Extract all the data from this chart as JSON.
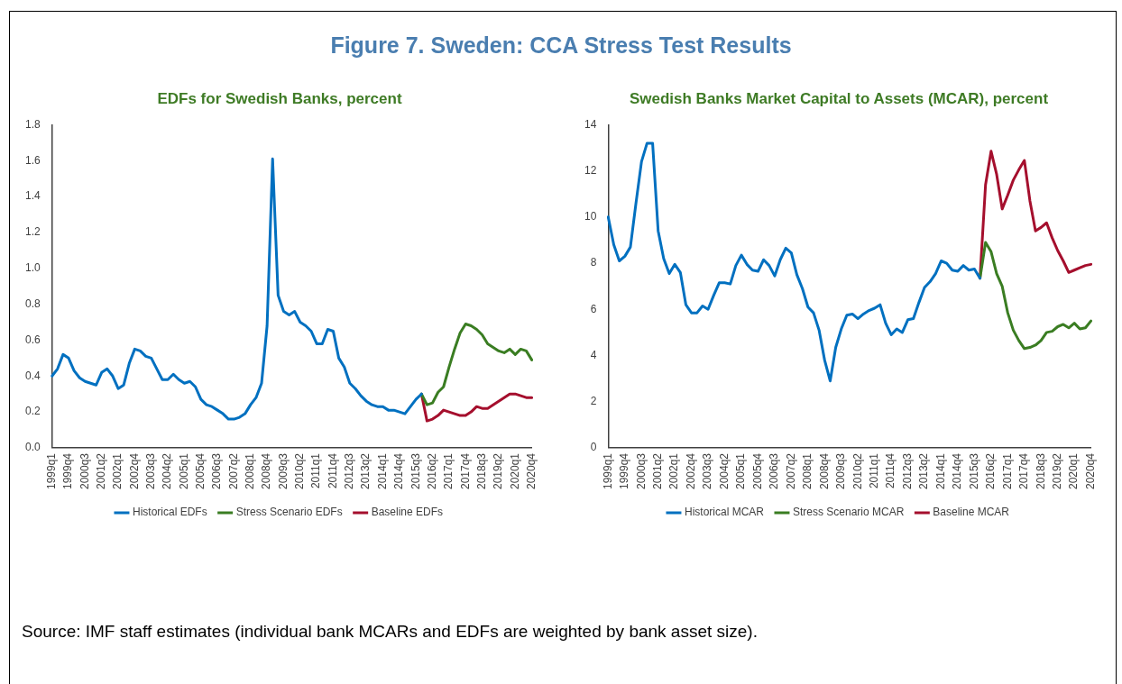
{
  "chart_data": [
    {
      "type": "other",
      "title": "Figure 7. Sweden: CCA Stress Test Results",
      "annotations": [
        "Source: IMF staff estimates (individual bank MCARs and EDFs are weighted by bank asset size)."
      ]
    },
    {
      "type": "line",
      "title": "EDFs for Swedish Banks, percent",
      "legend": "bottom",
      "grid": false,
      "marker": "none",
      "line_style": "solid",
      "categories": [
        "1999q1",
        null,
        null,
        "1999q4",
        null,
        null,
        "2000q3",
        null,
        null,
        "2001q2",
        null,
        null,
        "2002q1",
        null,
        null,
        "2002q4",
        null,
        null,
        "2003q3",
        null,
        null,
        "2004q2",
        null,
        null,
        "2005q1",
        null,
        null,
        "2005q4",
        null,
        null,
        "2006q3",
        null,
        null,
        "2007q2",
        null,
        null,
        "2008q1",
        null,
        null,
        "2008q4",
        null,
        null,
        "2009q3",
        null,
        null,
        "2010q2",
        null,
        null,
        "2011q1",
        null,
        null,
        "2011q4",
        null,
        null,
        "2012q3",
        null,
        null,
        "2013q2",
        null,
        null,
        "2014q1",
        null,
        null,
        "2014q4",
        null,
        null,
        "2015q3",
        null,
        null,
        "2016q2",
        null,
        null,
        "2017q1",
        null,
        null,
        "2017q4",
        null,
        null,
        "2018q3",
        null,
        null,
        "2019q2",
        null,
        null,
        "2020q1",
        null,
        null,
        "2020q4"
      ],
      "ylim": [
        0,
        1.8
      ],
      "yticks": [
        {
          "value": 0,
          "label": "0.0"
        },
        0.2,
        0.4,
        0.6,
        0.8,
        {
          "value": 1,
          "label": "1.0"
        },
        1.2,
        1.4,
        1.6,
        1.8
      ],
      "series": [
        {
          "name": "Historical EDFs",
          "color": "#0070c0",
          "values": [
            0.4,
            0.44,
            0.52,
            0.5,
            0.43,
            0.39,
            0.37,
            0.36,
            0.35,
            0.42,
            0.44,
            0.4,
            0.33,
            0.35,
            0.47,
            0.55,
            0.54,
            0.51,
            0.5,
            0.44,
            0.38,
            0.38,
            0.41,
            0.38,
            0.36,
            0.37,
            0.34,
            0.27,
            0.24,
            0.23,
            0.21,
            0.19,
            0.16,
            0.16,
            0.17,
            0.19,
            0.24,
            0.28,
            0.36,
            0.68,
            1.61,
            0.85,
            0.76,
            0.74,
            0.76,
            0.7,
            0.68,
            0.65,
            0.58,
            0.58,
            0.66,
            0.65,
            0.5,
            0.45,
            0.36,
            0.33,
            0.29,
            0.26,
            0.24,
            0.23,
            0.23,
            0.21,
            0.21,
            0.2,
            0.19,
            0.23,
            0.27,
            0.3,
            null,
            null,
            null,
            null,
            null,
            null,
            null,
            null,
            null,
            null,
            null,
            null,
            null,
            null,
            null,
            null,
            null,
            null,
            null,
            null
          ]
        },
        {
          "name": "Stress Scenario EDFs",
          "color": "#3a7d22",
          "values": [
            null,
            null,
            null,
            null,
            null,
            null,
            null,
            null,
            null,
            null,
            null,
            null,
            null,
            null,
            null,
            null,
            null,
            null,
            null,
            null,
            null,
            null,
            null,
            null,
            null,
            null,
            null,
            null,
            null,
            null,
            null,
            null,
            null,
            null,
            null,
            null,
            null,
            null,
            null,
            null,
            null,
            null,
            null,
            null,
            null,
            null,
            null,
            null,
            null,
            null,
            null,
            null,
            null,
            null,
            null,
            null,
            null,
            null,
            null,
            null,
            null,
            null,
            null,
            null,
            null,
            null,
            null,
            0.3,
            0.24,
            0.25,
            0.31,
            0.34,
            0.45,
            0.55,
            0.64,
            0.69,
            0.68,
            0.66,
            0.63,
            0.58,
            0.56,
            0.54,
            0.53,
            0.55,
            0.52,
            0.55,
            0.54,
            0.49
          ]
        },
        {
          "name": "Baseline EDFs",
          "color": "#a50f2d",
          "values": [
            null,
            null,
            null,
            null,
            null,
            null,
            null,
            null,
            null,
            null,
            null,
            null,
            null,
            null,
            null,
            null,
            null,
            null,
            null,
            null,
            null,
            null,
            null,
            null,
            null,
            null,
            null,
            null,
            null,
            null,
            null,
            null,
            null,
            null,
            null,
            null,
            null,
            null,
            null,
            null,
            null,
            null,
            null,
            null,
            null,
            null,
            null,
            null,
            null,
            null,
            null,
            null,
            null,
            null,
            null,
            null,
            null,
            null,
            null,
            null,
            null,
            null,
            null,
            null,
            null,
            null,
            null,
            0.3,
            0.15,
            0.16,
            0.18,
            0.21,
            0.2,
            0.19,
            0.18,
            0.18,
            0.2,
            0.23,
            0.22,
            0.22,
            0.24,
            0.26,
            0.28,
            0.3,
            0.3,
            0.29,
            0.28,
            0.28
          ]
        }
      ]
    },
    {
      "type": "line",
      "title": "Swedish Banks Market Capital to Assets (MCAR), percent",
      "legend": "bottom",
      "grid": false,
      "marker": "none",
      "line_style": "solid",
      "categories": [
        "1999q1",
        null,
        null,
        "1999q4",
        null,
        null,
        "2000q3",
        null,
        null,
        "2001q2",
        null,
        null,
        "2002q1",
        null,
        null,
        "2002q4",
        null,
        null,
        "2003q3",
        null,
        null,
        "2004q2",
        null,
        null,
        "2005q1",
        null,
        null,
        "2005q4",
        null,
        null,
        "2006q3",
        null,
        null,
        "2007q2",
        null,
        null,
        "2008q1",
        null,
        null,
        "2008q4",
        null,
        null,
        "2009q3",
        null,
        null,
        "2010q2",
        null,
        null,
        "2011q1",
        null,
        null,
        "2011q4",
        null,
        null,
        "2012q3",
        null,
        null,
        "2013q2",
        null,
        null,
        "2014q1",
        null,
        null,
        "2014q4",
        null,
        null,
        "2015q3",
        null,
        null,
        "2016q2",
        null,
        null,
        "2017q1",
        null,
        null,
        "2017q4",
        null,
        null,
        "2018q3",
        null,
        null,
        "2019q2",
        null,
        null,
        "2020q1",
        null,
        null,
        "2020q4"
      ],
      "ylim": [
        0,
        14
      ],
      "yticks": [
        0,
        2,
        4,
        6,
        8,
        10,
        12,
        14
      ],
      "series": [
        {
          "name": "Historical MCAR",
          "color": "#0070c0",
          "values": [
            10.0,
            8.8,
            8.1,
            8.3,
            8.7,
            10.6,
            12.4,
            13.2,
            13.2,
            9.4,
            8.2,
            7.55,
            7.95,
            7.6,
            6.2,
            5.85,
            5.85,
            6.15,
            6.0,
            6.6,
            7.15,
            7.15,
            7.1,
            7.9,
            8.35,
            7.95,
            7.7,
            7.65,
            8.15,
            7.9,
            7.45,
            8.15,
            8.65,
            8.45,
            7.5,
            6.9,
            6.1,
            5.85,
            5.1,
            3.8,
            2.9,
            4.35,
            5.15,
            5.75,
            5.8,
            5.6,
            5.8,
            5.95,
            6.05,
            6.2,
            5.4,
            4.9,
            5.15,
            5.0,
            5.55,
            5.6,
            6.3,
            6.95,
            7.2,
            7.55,
            8.1,
            8.0,
            7.7,
            7.65,
            7.9,
            7.7,
            7.75,
            7.35,
            null,
            null,
            null,
            null,
            null,
            null,
            null,
            null,
            null,
            null,
            null,
            null,
            null,
            null,
            null,
            null,
            null,
            null,
            null,
            null
          ]
        },
        {
          "name": "Stress Scenario MCAR",
          "color": "#3a7d22",
          "values": [
            null,
            null,
            null,
            null,
            null,
            null,
            null,
            null,
            null,
            null,
            null,
            null,
            null,
            null,
            null,
            null,
            null,
            null,
            null,
            null,
            null,
            null,
            null,
            null,
            null,
            null,
            null,
            null,
            null,
            null,
            null,
            null,
            null,
            null,
            null,
            null,
            null,
            null,
            null,
            null,
            null,
            null,
            null,
            null,
            null,
            null,
            null,
            null,
            null,
            null,
            null,
            null,
            null,
            null,
            null,
            null,
            null,
            null,
            null,
            null,
            null,
            null,
            null,
            null,
            null,
            null,
            null,
            7.35,
            8.9,
            8.5,
            7.55,
            7.0,
            5.85,
            5.1,
            4.65,
            4.3,
            4.35,
            4.45,
            4.65,
            5.0,
            5.05,
            5.25,
            5.35,
            5.2,
            5.4,
            5.15,
            5.2,
            5.5
          ]
        },
        {
          "name": "Baseline MCAR",
          "color": "#a50f2d",
          "values": [
            null,
            null,
            null,
            null,
            null,
            null,
            null,
            null,
            null,
            null,
            null,
            null,
            null,
            null,
            null,
            null,
            null,
            null,
            null,
            null,
            null,
            null,
            null,
            null,
            null,
            null,
            null,
            null,
            null,
            null,
            null,
            null,
            null,
            null,
            null,
            null,
            null,
            null,
            null,
            null,
            null,
            null,
            null,
            null,
            null,
            null,
            null,
            null,
            null,
            null,
            null,
            null,
            null,
            null,
            null,
            null,
            null,
            null,
            null,
            null,
            null,
            null,
            null,
            null,
            null,
            null,
            null,
            7.35,
            11.4,
            12.85,
            11.85,
            10.35,
            10.95,
            11.6,
            12.05,
            12.45,
            10.7,
            9.4,
            9.55,
            9.75,
            9.1,
            8.55,
            8.1,
            7.6,
            7.7,
            7.8,
            7.9,
            7.95
          ]
        }
      ]
    }
  ]
}
